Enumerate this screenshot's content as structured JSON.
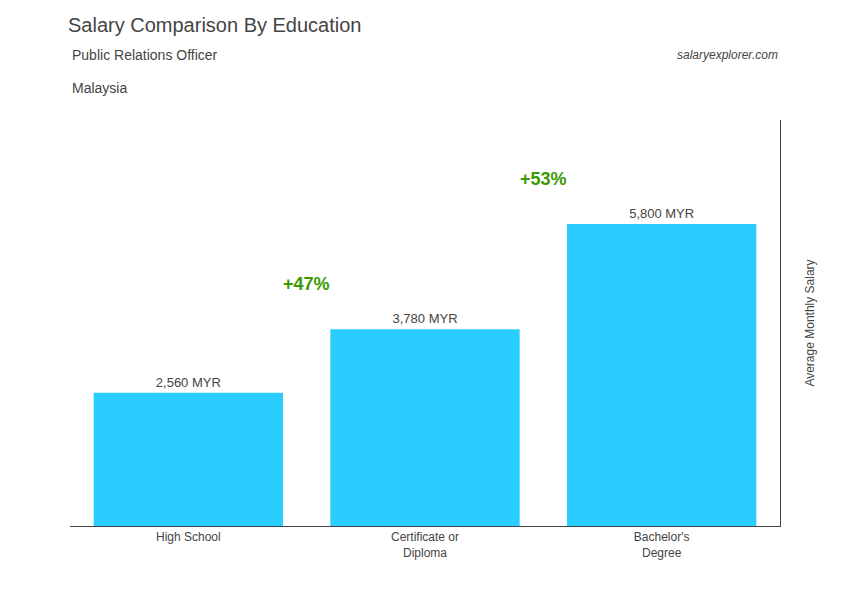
{
  "chart_data": {
    "type": "bar",
    "title": "Salary Comparison By Education",
    "subtitle": [
      "Public Relations Officer",
      "Malaysia"
    ],
    "categories": [
      "High School",
      "Certificate or\nDiploma",
      "Bachelor's\nDegree"
    ],
    "values": [
      2560,
      3780,
      5800
    ],
    "value_labels": [
      "2,560 MYR",
      "3,780 MYR",
      "5,800 MYR"
    ],
    "data_labels": true,
    "color": "#29CEFF",
    "ylabel": "Average Monthly Salary",
    "ylim": [
      0,
      7800
    ],
    "yticks": [],
    "tick_labels": "x",
    "grid": false,
    "annotations": [
      "+47%",
      "+53%",
      "salaryexplorer.com"
    ]
  }
}
